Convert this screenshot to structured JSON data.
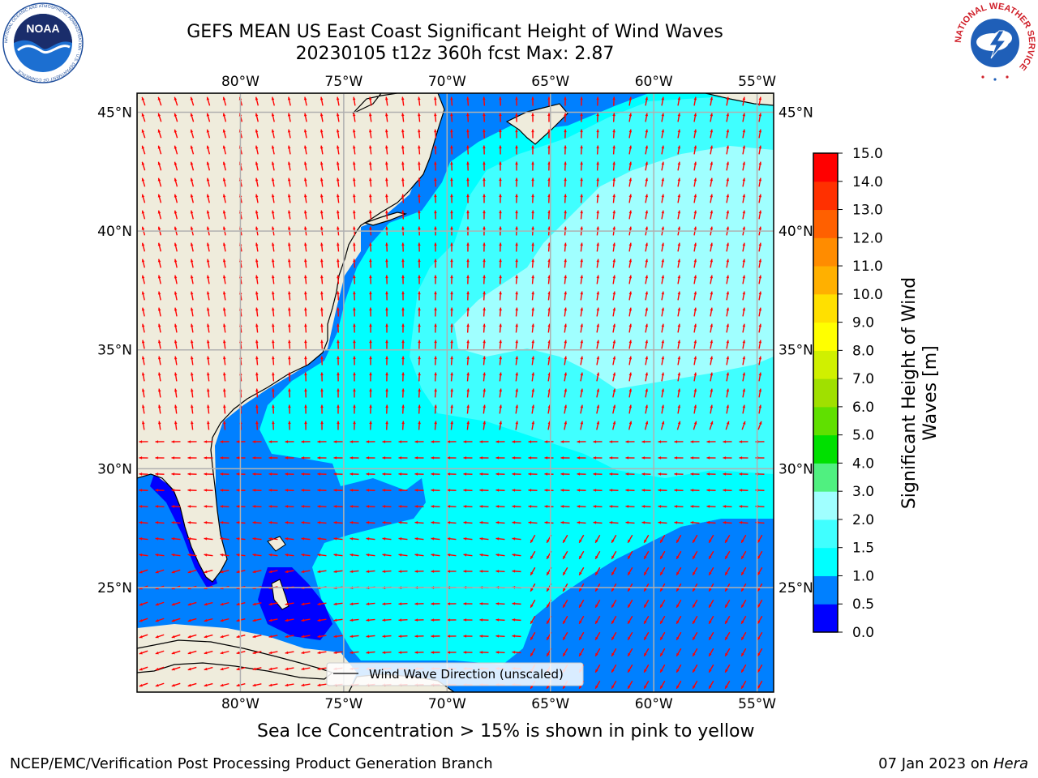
{
  "title_line1": "GEFS MEAN US East Coast Significant Height of Wind Waves",
  "title_line2": "20230105 t12z 360h fcst   Max: 2.87",
  "logos": {
    "noaa_text": "NOAA",
    "noaa_ring_text": "NATIONAL OCEANIC AND ATMOSPHERIC ADMINISTRATION · U.S. DEPARTMENT OF COMMERCE",
    "nws_ring_text": "NATIONAL WEATHER SERVICE"
  },
  "map": {
    "lon_labels": [
      "80°W",
      "75°W",
      "70°W",
      "65°W",
      "60°W",
      "55°W"
    ],
    "lat_labels": [
      "45°N",
      "40°N",
      "35°N",
      "30°N",
      "25°N"
    ],
    "lon_values": [
      -80,
      -75,
      -70,
      -65,
      -60,
      -55
    ],
    "lat_values": [
      45,
      40,
      35,
      30,
      25
    ],
    "extent": {
      "lon_min": -85,
      "lon_max": -54.2,
      "lat_min": 20.6,
      "lat_max": 45.8
    },
    "land_color": "#efecdc",
    "grid_color": "#b0b0b0",
    "arrow_color": "#ff0000",
    "legend_label": "Wind Wave Direction (unscaled)"
  },
  "colorbar": {
    "label": "Significant Height of Wind Waves [m]",
    "ticks": [
      "0.0",
      "0.5",
      "1.0",
      "1.5",
      "2.0",
      "3.0",
      "4.0",
      "5.0",
      "6.0",
      "7.0",
      "8.0",
      "9.0",
      "10.0",
      "11.0",
      "12.0",
      "13.0",
      "14.0",
      "15.0"
    ],
    "colors": [
      "#0000ff",
      "#0080ff",
      "#00ffff",
      "#40ffff",
      "#a0ffff",
      "#50f080",
      "#00e000",
      "#60e000",
      "#a0e000",
      "#d0f000",
      "#ffff00",
      "#ffe000",
      "#ffb000",
      "#ff8c00",
      "#ff6000",
      "#ff3000",
      "#ff0000"
    ]
  },
  "sea_ice_note": "Sea Ice Concentration > 15% is shown in pink to yellow",
  "footer_left": "NCEP/EMC/Verification Post Processing Product Generation Branch",
  "footer_right_prefix": "07 Jan 2023 on ",
  "footer_right_host": "Hera"
}
